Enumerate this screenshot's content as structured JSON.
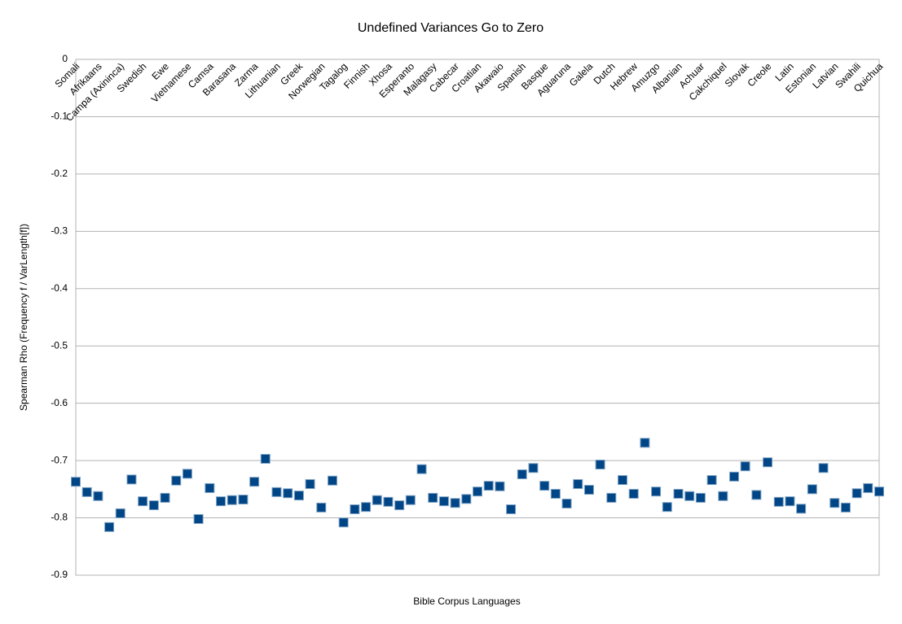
{
  "chart_data": {
    "type": "scatter",
    "title": "Undefined Variances Go to Zero",
    "x_label": "Bible Corpus Languages",
    "y_label": "Spearman Rho (Frequency f / VarLength[f])",
    "categories": [
      "Somali",
      null,
      "Afrikaans",
      null,
      "Campa (Axininca)",
      null,
      "Swedish",
      null,
      "Ewe",
      null,
      "Vietnamese",
      null,
      "Camsa",
      null,
      "Barasana",
      null,
      "Zarma",
      null,
      "Lithuanian",
      null,
      "Greek",
      null,
      "Norwegian",
      null,
      "Tagalog",
      null,
      "Finnish",
      null,
      "Xhosa",
      null,
      "Esperanto",
      null,
      "Malagasy",
      null,
      "Cabecar",
      null,
      "Croatian",
      null,
      "Akawaio",
      null,
      "Spanish",
      null,
      "Basque",
      null,
      "Aguaruna",
      null,
      "Galela",
      null,
      "Dutch",
      null,
      "Hebrew",
      null,
      "Amuzgo",
      null,
      "Albanian",
      null,
      "Achuar",
      null,
      "Cakchiquel",
      null,
      "Slovak",
      null,
      "Creole",
      null,
      "Latin",
      null,
      "Estonian",
      null,
      "Latvian",
      null,
      "Swahili",
      null,
      "Quichua"
    ],
    "values": [
      -0.737,
      -0.755,
      -0.762,
      -0.816,
      -0.792,
      -0.733,
      -0.771,
      -0.778,
      -0.765,
      -0.735,
      -0.723,
      -0.802,
      -0.748,
      -0.771,
      -0.769,
      -0.768,
      -0.737,
      -0.697,
      -0.755,
      -0.757,
      -0.761,
      -0.741,
      -0.782,
      -0.735,
      -0.808,
      -0.785,
      -0.781,
      -0.769,
      -0.772,
      -0.778,
      -0.769,
      -0.715,
      -0.765,
      -0.771,
      -0.774,
      -0.767,
      -0.754,
      -0.744,
      -0.745,
      -0.785,
      -0.724,
      -0.713,
      -0.744,
      -0.758,
      -0.775,
      -0.741,
      -0.751,
      -0.707,
      -0.765,
      -0.734,
      -0.758,
      -0.669,
      -0.754,
      -0.781,
      -0.758,
      -0.762,
      -0.765,
      -0.734,
      -0.762,
      -0.728,
      -0.71,
      -0.76,
      -0.703,
      -0.772,
      -0.771,
      -0.784,
      -0.75,
      -0.713,
      -0.774,
      -0.782,
      -0.757,
      -0.748,
      -0.754
    ],
    "color": "#004586",
    "ylim": [
      -0.9,
      0
    ],
    "yticks": [
      0,
      -0.1,
      -0.2,
      -0.3,
      -0.4,
      -0.5,
      -0.6,
      -0.7,
      -0.8,
      -0.9
    ],
    "grid": true
  }
}
